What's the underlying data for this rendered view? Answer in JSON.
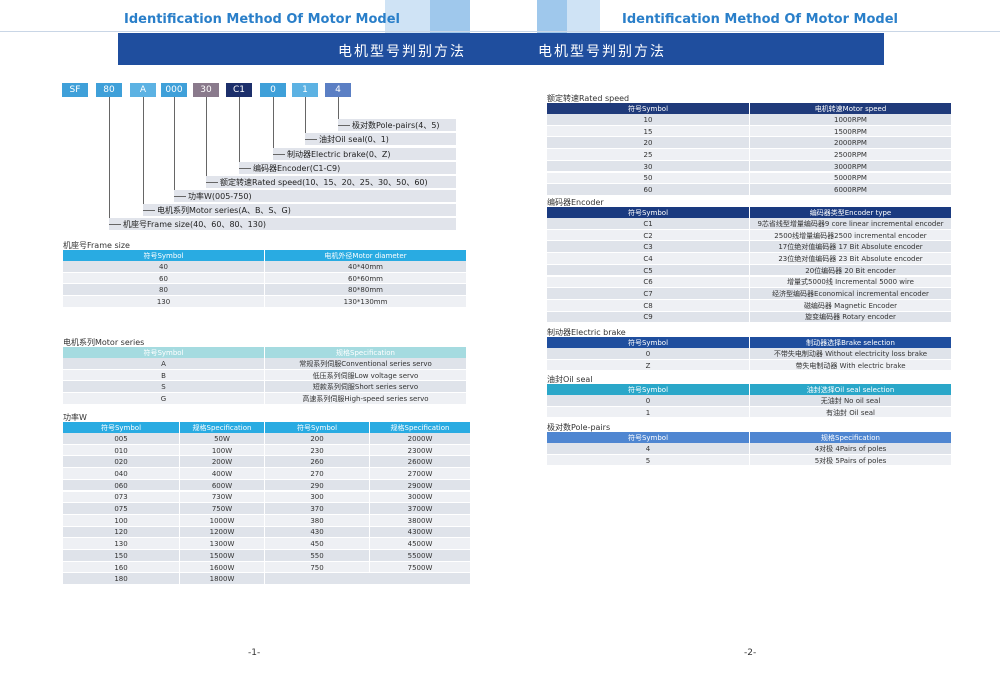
{
  "header": {
    "left_title": "Identification Method Of Motor Model",
    "right_title": "Identification Method Of Motor Model",
    "banner_left": "电机型号判别方法",
    "banner_right": "电机型号判别方法"
  },
  "model_code": {
    "boxes": [
      "SF",
      "80",
      "A",
      "000",
      "30",
      "C1",
      "0",
      "1",
      "4"
    ],
    "labels": [
      "极对数Pole-pairs(4、5)",
      "油封Oil seal(0、1)",
      "制动器Electric brake(0、Z)",
      "编码器Encoder(C1-C9)",
      "额定转速Rated speed(10、15、20、25、30、50、60)",
      "功率W(005-750)",
      "电机系列Motor series(A、B、S、G)",
      "机座号Frame size(40、60、80、130)"
    ]
  },
  "tables": {
    "frame_size": {
      "title": "机座号Frame size",
      "columns": [
        "符号Symbol",
        "电机外径Motor diameter"
      ],
      "rows": [
        [
          "40",
          "40*40mm"
        ],
        [
          "60",
          "60*60mm"
        ],
        [
          "80",
          "80*80mm"
        ],
        [
          "130",
          "130*130mm"
        ]
      ]
    },
    "motor_series": {
      "title": "电机系列Motor series",
      "columns": [
        "符号Symbol",
        "规格Specification"
      ],
      "rows": [
        [
          "A",
          "常规系列伺服Conventional series servo"
        ],
        [
          "B",
          "低压系列伺服Low voltage servo"
        ],
        [
          "S",
          "短款系列伺服Short series servo"
        ],
        [
          "G",
          "高速系列伺服High-speed series servo"
        ]
      ]
    },
    "power": {
      "title": "功率W",
      "columns": [
        "符号Symbol",
        "规格Specification",
        "符号Symbol",
        "规格Specification"
      ],
      "rows": [
        [
          "005",
          "50W",
          "200",
          "2000W"
        ],
        [
          "010",
          "100W",
          "230",
          "2300W"
        ],
        [
          "020",
          "200W",
          "260",
          "2600W"
        ],
        [
          "040",
          "400W",
          "270",
          "2700W"
        ],
        [
          "060",
          "600W",
          "290",
          "2900W"
        ],
        [
          "073",
          "730W",
          "300",
          "3000W"
        ],
        [
          "075",
          "750W",
          "370",
          "3700W"
        ],
        [
          "100",
          "1000W",
          "380",
          "3800W"
        ],
        [
          "120",
          "1200W",
          "430",
          "4300W"
        ],
        [
          "130",
          "1300W",
          "450",
          "4500W"
        ],
        [
          "150",
          "1500W",
          "550",
          "5500W"
        ],
        [
          "160",
          "1600W",
          "750",
          "7500W"
        ],
        [
          "180",
          "1800W"
        ]
      ]
    },
    "rated_speed": {
      "title": "额定转速Rated speed",
      "columns": [
        "符号Symbol",
        "电机转速Motor speed"
      ],
      "rows": [
        [
          "10",
          "1000RPM"
        ],
        [
          "15",
          "1500RPM"
        ],
        [
          "20",
          "2000RPM"
        ],
        [
          "25",
          "2500RPM"
        ],
        [
          "30",
          "3000RPM"
        ],
        [
          "50",
          "5000RPM"
        ],
        [
          "60",
          "6000RPM"
        ]
      ]
    },
    "encoder": {
      "title": "编码器Encoder",
      "columns": [
        "符号Symbol",
        "编码器类型Encoder type"
      ],
      "rows": [
        [
          "C1",
          "9芯省线型增量编码器9 core linear incremental encoder"
        ],
        [
          "C2",
          "2500线增量编码器2500 incremental encoder"
        ],
        [
          "C3",
          "17位绝对值编码器 17 Bit Absolute encoder"
        ],
        [
          "C4",
          "23位绝对值编码器 23 Bit Absolute encoder"
        ],
        [
          "C5",
          "20位编码器 20 Bit encoder"
        ],
        [
          "C6",
          "增量式5000线 Incremental 5000 wire"
        ],
        [
          "C7",
          "经济型编码器Economical incremental encoder"
        ],
        [
          "C8",
          "磁编码器 Magnetic Encoder"
        ],
        [
          "C9",
          "旋变编码器 Rotary encoder"
        ]
      ]
    },
    "brake": {
      "title": "制动器Electric brake",
      "columns": [
        "符号Symbol",
        "制动器选择Brake selection"
      ],
      "rows": [
        [
          "0",
          "不带失电制动器 Without electricity loss brake"
        ],
        [
          "Z",
          "带失电制动器 With electric brake"
        ]
      ]
    },
    "oil_seal": {
      "title": "油封Oil seal",
      "columns": [
        "符号Symbol",
        "油封选择Oil seal selection"
      ],
      "rows": [
        [
          "0",
          "无油封 No oil seal"
        ],
        [
          "1",
          "有油封 Oil seal"
        ]
      ]
    },
    "pole_pairs": {
      "title": "极对数Pole-pairs",
      "columns": [
        "符号Symbol",
        "规格Specification"
      ],
      "rows": [
        [
          "4",
          "4对极 4Pairs of poles"
        ],
        [
          "5",
          "5对极 5Pairs of poles"
        ]
      ]
    }
  },
  "footer": {
    "page_left": "-1-",
    "page_right": "-2-"
  }
}
